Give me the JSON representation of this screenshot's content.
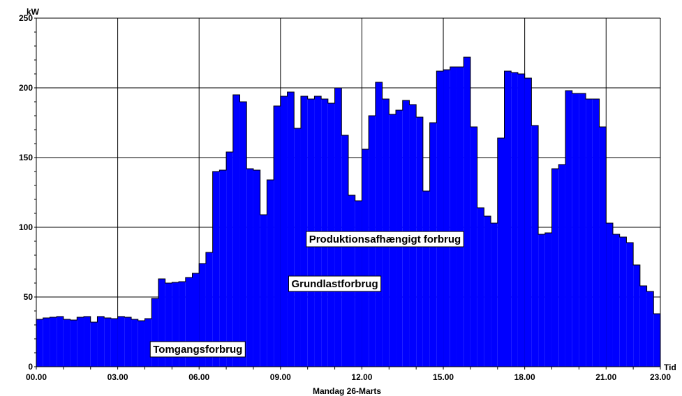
{
  "chart_data": {
    "type": "bar",
    "ylabel": "kW",
    "xlabel": "Tid",
    "subtitle": "Mandag 26-Marts",
    "ylim": [
      0,
      250
    ],
    "xlim": [
      0,
      23
    ],
    "grid": true,
    "colors": {
      "bar": "#0000ff",
      "bar_edge": "#000000",
      "grid": "#000000"
    },
    "y_ticks": [
      0,
      50,
      100,
      150,
      200,
      250
    ],
    "x_ticks": [
      0,
      3,
      6,
      9,
      12,
      15,
      18,
      21,
      23
    ],
    "x_tick_labels": [
      "00.00",
      "03.00",
      "06.00",
      "09.00",
      "12.00",
      "15.00",
      "18.00",
      "21.00",
      "23.00"
    ],
    "interval_hours": 0.25,
    "values": [
      34,
      35,
      35.5,
      36,
      34,
      33.5,
      35.5,
      36,
      32,
      36,
      35,
      34.5,
      36,
      35.5,
      34,
      33,
      34.5,
      49,
      63,
      60,
      60.5,
      61,
      64,
      67,
      74,
      82,
      140,
      141,
      154,
      195,
      190,
      142,
      141,
      109,
      134,
      187,
      194,
      197,
      171,
      194,
      192,
      194,
      192,
      189,
      200,
      166,
      123,
      119,
      156,
      180,
      204,
      192,
      181,
      184,
      191,
      188,
      179,
      126,
      175,
      212,
      213,
      215,
      215,
      222,
      172,
      114,
      108,
      103,
      164,
      212,
      211,
      210,
      207,
      173,
      95,
      96,
      142,
      145,
      198,
      196,
      196,
      192,
      192,
      172,
      103,
      95,
      93,
      89,
      73,
      58,
      54,
      38
    ],
    "annotations": [
      {
        "text": "Produktionsafhængigt forbrug",
        "x": 12.85,
        "y": 91.5
      },
      {
        "text": "Grundlastforbrug",
        "x": 11.0,
        "y": 59.5
      },
      {
        "text": "Tomgangsforbrug",
        "x": 5.95,
        "y": 12.5
      }
    ]
  }
}
